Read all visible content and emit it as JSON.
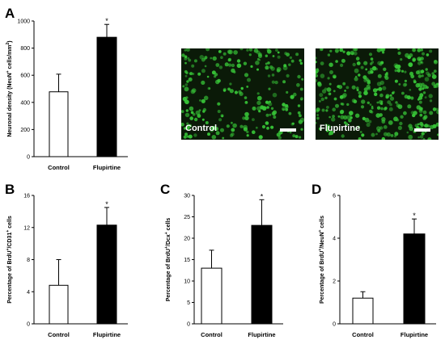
{
  "panel_letters": [
    "A",
    "B",
    "C",
    "D"
  ],
  "micrographs": [
    {
      "label": "Control"
    },
    {
      "label": "Flupirtine"
    }
  ],
  "colors": {
    "control_bar": "#ffffff",
    "flupirtine_bar": "#000000",
    "axis": "#000000",
    "cell_green": "#37c437"
  },
  "chart_data": [
    {
      "panel": "A",
      "type": "bar",
      "categories": [
        "Control",
        "Flupirtine"
      ],
      "values": [
        478,
        880
      ],
      "errors": [
        130,
        95
      ],
      "significance": [
        "",
        "*"
      ],
      "ylabel_parts": [
        "Neuronal density (NeuN",
        "+",
        " cells/mm",
        "2",
        ")"
      ],
      "ylim": [
        0,
        1000
      ],
      "yticks": [
        0,
        200,
        400,
        600,
        800,
        1000
      ]
    },
    {
      "panel": "B",
      "type": "bar",
      "categories": [
        "Control",
        "Flupirtine"
      ],
      "values": [
        4.8,
        12.3
      ],
      "errors": [
        3.2,
        2.2
      ],
      "significance": [
        "",
        "*"
      ],
      "ylabel_parts": [
        "Percentage of BrdU",
        "+",
        "/CD31",
        "+",
        " cells"
      ],
      "ylim": [
        0,
        16
      ],
      "yticks": [
        0,
        4,
        8,
        12,
        16
      ]
    },
    {
      "panel": "C",
      "type": "bar",
      "categories": [
        "Control",
        "Flupirtine"
      ],
      "values": [
        13,
        23
      ],
      "errors": [
        4.2,
        6.0
      ],
      "significance": [
        "",
        "*"
      ],
      "ylabel_parts": [
        "Percentage of BrdU",
        "+",
        "/Dcx",
        "+",
        " cells"
      ],
      "ylim": [
        0,
        30
      ],
      "yticks": [
        0,
        5,
        10,
        15,
        20,
        25,
        30
      ]
    },
    {
      "panel": "D",
      "type": "bar",
      "categories": [
        "Control",
        "Flupirtine"
      ],
      "values": [
        1.2,
        4.2
      ],
      "errors": [
        0.3,
        0.7
      ],
      "significance": [
        "",
        "*"
      ],
      "ylabel_parts": [
        "Percentage of BrdU",
        "+",
        "/NeuN",
        "+",
        " cells"
      ],
      "ylim": [
        0,
        6
      ],
      "yticks": [
        0,
        2,
        4,
        6
      ]
    }
  ]
}
